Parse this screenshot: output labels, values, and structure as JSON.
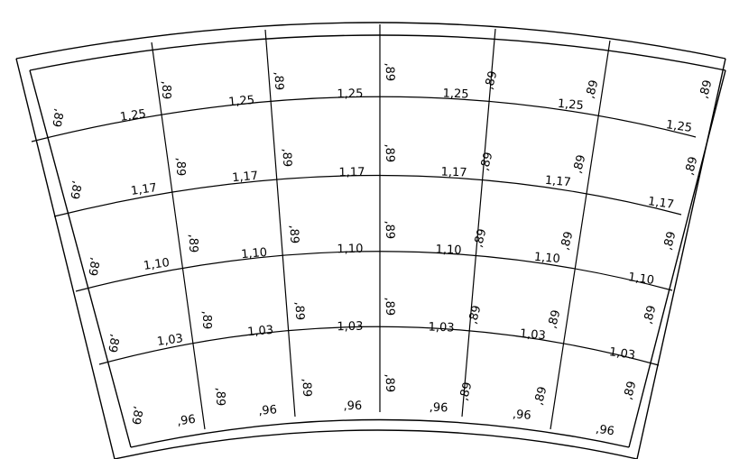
{
  "grid": {
    "row_widths": [
      "1,25",
      "1,17",
      "1,10",
      "1,03",
      ",96"
    ],
    "column_height": ",89"
  }
}
